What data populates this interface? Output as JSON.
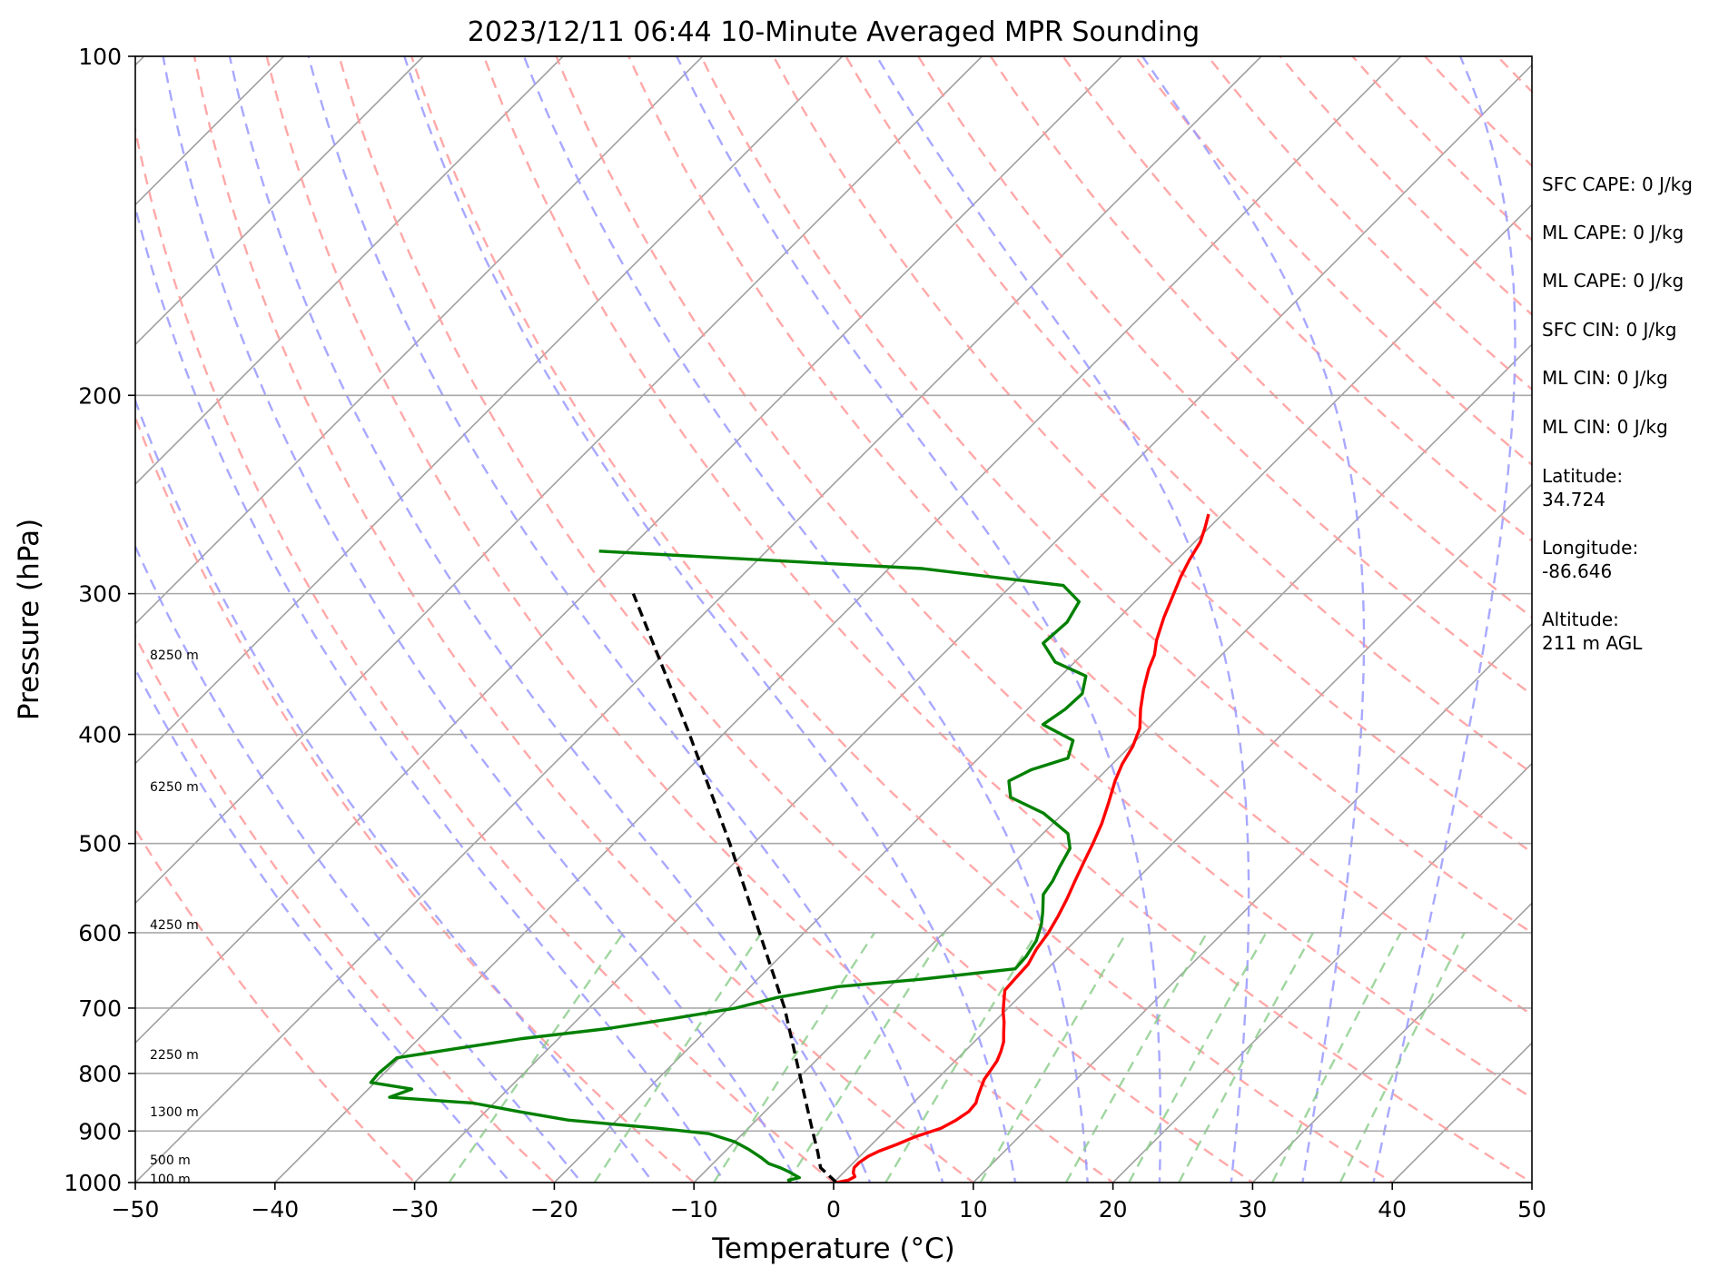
{
  "chart_data": {
    "type": "line",
    "subtype": "skew-t log-p sounding",
    "title": "2023/12/11 06:44 10-Minute Averaged MPR Sounding",
    "xlabel": "Temperature (°C)",
    "ylabel": "Pressure (hPa)",
    "xlim": [
      -50,
      50
    ],
    "ylim": [
      1000,
      100
    ],
    "yscale": "log",
    "x_ticks": [
      -50,
      -40,
      -30,
      -20,
      -10,
      0,
      10,
      20,
      30,
      40,
      50
    ],
    "x_tick_labels": [
      "−50",
      "−40",
      "−30",
      "−20",
      "−10",
      "0",
      "10",
      "20",
      "30",
      "40",
      "50"
    ],
    "y_ticks": [
      100,
      200,
      300,
      400,
      500,
      600,
      700,
      800,
      900,
      1000
    ],
    "y_tick_labels": [
      "100",
      "200",
      "300",
      "400",
      "500",
      "600",
      "700",
      "800",
      "900",
      "1000"
    ],
    "grid": true,
    "height_labels": [
      {
        "pressure": 340,
        "text": "8250 m"
      },
      {
        "pressure": 445,
        "text": "6250 m"
      },
      {
        "pressure": 590,
        "text": "4250 m"
      },
      {
        "pressure": 770,
        "text": "2250 m"
      },
      {
        "pressure": 865,
        "text": "1300 m"
      },
      {
        "pressure": 955,
        "text": "500 m"
      },
      {
        "pressure": 993,
        "text": "100 m"
      }
    ],
    "series": [
      {
        "role": "temperature",
        "color": "#ff0000",
        "points": [
          [
            1000,
            0.2
          ],
          [
            995,
            0.9
          ],
          [
            988,
            1.1
          ],
          [
            980,
            0.7
          ],
          [
            970,
            0.4
          ],
          [
            960,
            0.4
          ],
          [
            948,
            0.6
          ],
          [
            938,
            1.0
          ],
          [
            925,
            1.8
          ],
          [
            910,
            2.6
          ],
          [
            895,
            3.8
          ],
          [
            880,
            4.3
          ],
          [
            865,
            4.6
          ],
          [
            850,
            4.5
          ],
          [
            840,
            4.2
          ],
          [
            825,
            3.8
          ],
          [
            810,
            3.4
          ],
          [
            795,
            3.2
          ],
          [
            780,
            3.0
          ],
          [
            765,
            2.6
          ],
          [
            750,
            2.1
          ],
          [
            735,
            1.4
          ],
          [
            720,
            0.7
          ],
          [
            705,
            -0.1
          ],
          [
            690,
            -0.8
          ],
          [
            675,
            -1.5
          ],
          [
            660,
            -1.6
          ],
          [
            640,
            -1.7
          ],
          [
            620,
            -2.2
          ],
          [
            600,
            -2.5
          ],
          [
            580,
            -3.0
          ],
          [
            560,
            -3.6
          ],
          [
            540,
            -4.3
          ],
          [
            520,
            -5.0
          ],
          [
            500,
            -5.7
          ],
          [
            480,
            -6.5
          ],
          [
            460,
            -7.5
          ],
          [
            440,
            -8.6
          ],
          [
            425,
            -9.3
          ],
          [
            410,
            -9.8
          ],
          [
            395,
            -10.6
          ],
          [
            380,
            -11.9
          ],
          [
            365,
            -13.1
          ],
          [
            350,
            -14.2
          ],
          [
            340,
            -14.8
          ],
          [
            330,
            -15.7
          ],
          [
            315,
            -16.8
          ],
          [
            300,
            -17.8
          ],
          [
            290,
            -18.5
          ],
          [
            280,
            -19.1
          ],
          [
            270,
            -19.6
          ],
          [
            262,
            -20.3
          ],
          [
            255,
            -21.0
          ]
        ]
      },
      {
        "role": "dewpoint",
        "color": "#008000",
        "points": [
          [
            1000,
            -3.1
          ],
          [
            995,
            -3.4
          ],
          [
            990,
            -2.8
          ],
          [
            985,
            -3.3
          ],
          [
            978,
            -4.0
          ],
          [
            970,
            -4.9
          ],
          [
            962,
            -6.0
          ],
          [
            950,
            -7.0
          ],
          [
            935,
            -8.4
          ],
          [
            920,
            -10.0
          ],
          [
            905,
            -12.4
          ],
          [
            895,
            -16.4
          ],
          [
            880,
            -23.5
          ],
          [
            865,
            -27.6
          ],
          [
            850,
            -31.5
          ],
          [
            840,
            -37.9
          ],
          [
            826,
            -36.9
          ],
          [
            815,
            -40.3
          ],
          [
            800,
            -40.4
          ],
          [
            788,
            -40.3
          ],
          [
            775,
            -40.2
          ],
          [
            760,
            -36.5
          ],
          [
            745,
            -32.6
          ],
          [
            730,
            -27.2
          ],
          [
            715,
            -23.2
          ],
          [
            700,
            -19.5
          ],
          [
            685,
            -17.3
          ],
          [
            670,
            -13.7
          ],
          [
            660,
            -8.3
          ],
          [
            646,
            -2.3
          ],
          [
            630,
            -2.4
          ],
          [
            610,
            -2.8
          ],
          [
            590,
            -3.6
          ],
          [
            575,
            -4.4
          ],
          [
            555,
            -5.6
          ],
          [
            540,
            -5.9
          ],
          [
            525,
            -6.4
          ],
          [
            505,
            -7.0
          ],
          [
            490,
            -8.2
          ],
          [
            470,
            -11.4
          ],
          [
            455,
            -14.9
          ],
          [
            440,
            -16.2
          ],
          [
            430,
            -15.4
          ],
          [
            420,
            -13.6
          ],
          [
            405,
            -14.5
          ],
          [
            392,
            -17.8
          ],
          [
            380,
            -17.3
          ],
          [
            368,
            -17.2
          ],
          [
            355,
            -18.2
          ],
          [
            345,
            -21.4
          ],
          [
            332,
            -23.6
          ],
          [
            318,
            -23.4
          ],
          [
            305,
            -24.0
          ],
          [
            295,
            -26.3
          ],
          [
            285,
            -37.6
          ],
          [
            275,
            -62.0
          ]
        ]
      }
    ],
    "parcel_profile": {
      "color": "#000000",
      "points": [
        [
          1000,
          0.2
        ],
        [
          970,
          -2.0
        ],
        [
          940,
          -3.3
        ],
        [
          900,
          -5.2
        ],
        [
          700,
          -16.0
        ],
        [
          500,
          -31.7
        ],
        [
          400,
          -42.4
        ],
        [
          300,
          -56.5
        ]
      ]
    },
    "background_lines": {
      "isotherms_color": "#a0a0a0",
      "dry_adiabats_color": "#ff9999",
      "moist_adiabats_color": "#9999ff",
      "mixing_ratio_color": "#88cc88"
    },
    "info_lines": [
      "SFC CAPE: 0 J/kg",
      "ML CAPE: 0 J/kg",
      "ML CAPE: 0 J/kg",
      "SFC CIN: 0 J/kg",
      "ML CIN: 0 J/kg",
      "ML CIN: 0 J/kg",
      "Latitude:",
      "34.724",
      "Longitude:",
      "-86.646",
      "Altitude:",
      "211 m AGL"
    ]
  }
}
